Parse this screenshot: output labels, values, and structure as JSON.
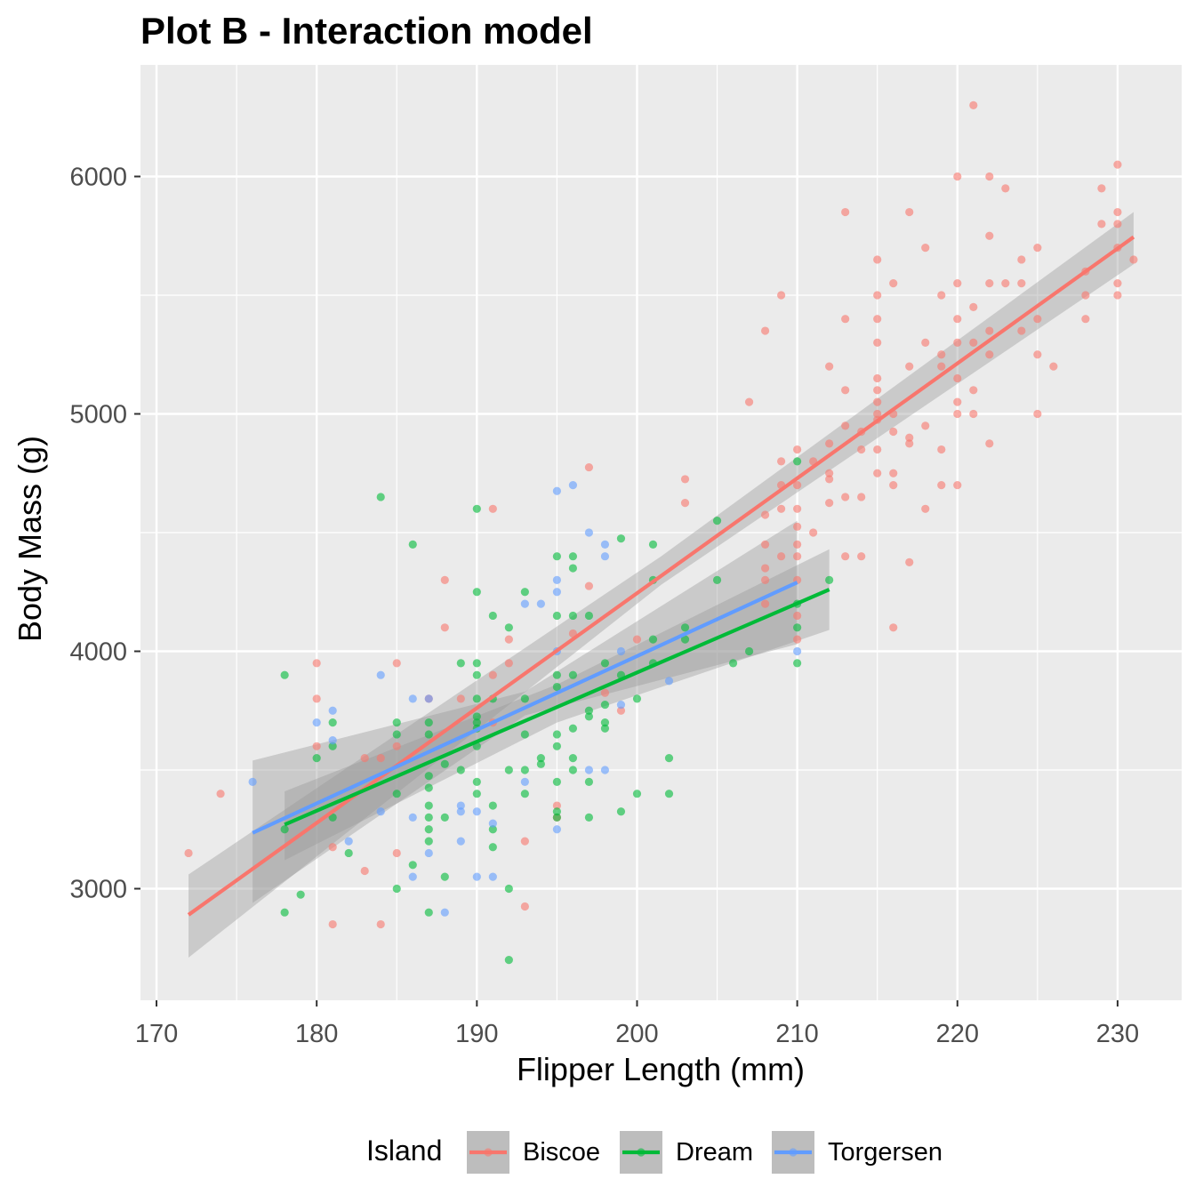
{
  "chart_data": {
    "type": "scatter",
    "title": "Plot B - Interaction model",
    "xlabel": "Flipper Length (mm)",
    "ylabel": "Body Mass (g)",
    "xlim": [
      169,
      234
    ],
    "ylim": [
      2530,
      6470
    ],
    "x_ticks": [
      170,
      180,
      190,
      200,
      210,
      220,
      230
    ],
    "y_ticks": [
      3000,
      4000,
      5000,
      6000
    ],
    "grid": true,
    "legend": {
      "title": "Island",
      "position": "bottom"
    },
    "series": [
      {
        "name": "Biscoe",
        "color": "#F8766D",
        "fit": {
          "x": [
            172,
            231
          ],
          "y": [
            2890,
            5745
          ]
        },
        "band": {
          "x": [
            172,
            201.5,
            231
          ],
          "lower": [
            2710,
            4280,
            5630
          ],
          "upper": [
            3060,
            4400,
            5850
          ]
        },
        "points": [
          [
            172,
            3150
          ],
          [
            174,
            3400
          ],
          [
            180,
            3950
          ],
          [
            180,
            3800
          ],
          [
            180,
            3600
          ],
          [
            181,
            3175
          ],
          [
            181,
            2850
          ],
          [
            183,
            3550
          ],
          [
            183,
            3075
          ],
          [
            184,
            3550
          ],
          [
            184,
            2850
          ],
          [
            185,
            3950
          ],
          [
            185,
            3600
          ],
          [
            185,
            3150
          ],
          [
            187,
            3800
          ],
          [
            188,
            4300
          ],
          [
            188,
            4100
          ],
          [
            189,
            3800
          ],
          [
            191,
            4600
          ],
          [
            191,
            3900
          ],
          [
            191,
            3700
          ],
          [
            192,
            4050
          ],
          [
            192,
            3950
          ],
          [
            193,
            3200
          ],
          [
            193,
            2925
          ],
          [
            195,
            3350
          ],
          [
            195,
            3300
          ],
          [
            196,
            4075
          ],
          [
            197,
            4775
          ],
          [
            197,
            4275
          ],
          [
            198,
            3825
          ],
          [
            199,
            3750
          ],
          [
            200,
            4050
          ],
          [
            203,
            4725
          ],
          [
            203,
            4625
          ],
          [
            207,
            5050
          ],
          [
            208,
            5350
          ],
          [
            208,
            4575
          ],
          [
            208,
            4450
          ],
          [
            208,
            4350
          ],
          [
            208,
            4300
          ],
          [
            208,
            4200
          ],
          [
            209,
            5500
          ],
          [
            209,
            4800
          ],
          [
            209,
            4700
          ],
          [
            209,
            4600
          ],
          [
            209,
            4400
          ],
          [
            210,
            4850
          ],
          [
            210,
            4700
          ],
          [
            210,
            4600
          ],
          [
            210,
            4525
          ],
          [
            210,
            4450
          ],
          [
            210,
            4400
          ],
          [
            210,
            4300
          ],
          [
            210,
            4150
          ],
          [
            210,
            4050
          ],
          [
            211,
            4800
          ],
          [
            211,
            4500
          ],
          [
            212,
            5200
          ],
          [
            212,
            4875
          ],
          [
            212,
            4750
          ],
          [
            212,
            4725
          ],
          [
            212,
            4625
          ],
          [
            213,
            5850
          ],
          [
            213,
            5400
          ],
          [
            213,
            5100
          ],
          [
            213,
            4950
          ],
          [
            213,
            4650
          ],
          [
            213,
            4400
          ],
          [
            214,
            4925
          ],
          [
            214,
            4850
          ],
          [
            214,
            4650
          ],
          [
            214,
            4400
          ],
          [
            215,
            5650
          ],
          [
            215,
            5500
          ],
          [
            215,
            5400
          ],
          [
            215,
            5300
          ],
          [
            215,
            5150
          ],
          [
            215,
            5100
          ],
          [
            215,
            5050
          ],
          [
            215,
            5000
          ],
          [
            215,
            4975
          ],
          [
            215,
            4850
          ],
          [
            215,
            4750
          ],
          [
            216,
            5550
          ],
          [
            216,
            5000
          ],
          [
            216,
            4925
          ],
          [
            216,
            4750
          ],
          [
            216,
            4700
          ],
          [
            216,
            4100
          ],
          [
            217,
            5850
          ],
          [
            217,
            5200
          ],
          [
            217,
            4900
          ],
          [
            217,
            4875
          ],
          [
            217,
            4375
          ],
          [
            218,
            5700
          ],
          [
            218,
            5300
          ],
          [
            218,
            4950
          ],
          [
            218,
            4600
          ],
          [
            219,
            5500
          ],
          [
            219,
            5250
          ],
          [
            219,
            5200
          ],
          [
            219,
            4850
          ],
          [
            219,
            4700
          ],
          [
            220,
            6000
          ],
          [
            220,
            5550
          ],
          [
            220,
            5400
          ],
          [
            220,
            5300
          ],
          [
            220,
            5150
          ],
          [
            220,
            5050
          ],
          [
            220,
            5000
          ],
          [
            220,
            4700
          ],
          [
            221,
            6300
          ],
          [
            221,
            5450
          ],
          [
            221,
            5300
          ],
          [
            221,
            5100
          ],
          [
            221,
            5000
          ],
          [
            222,
            6000
          ],
          [
            222,
            5750
          ],
          [
            222,
            5550
          ],
          [
            222,
            5350
          ],
          [
            222,
            5250
          ],
          [
            222,
            4875
          ],
          [
            223,
            5950
          ],
          [
            223,
            5550
          ],
          [
            224,
            5650
          ],
          [
            224,
            5550
          ],
          [
            224,
            5350
          ],
          [
            225,
            5700
          ],
          [
            225,
            5400
          ],
          [
            225,
            5250
          ],
          [
            225,
            5000
          ],
          [
            226,
            5200
          ],
          [
            228,
            5600
          ],
          [
            228,
            5500
          ],
          [
            228,
            5400
          ],
          [
            229,
            5950
          ],
          [
            229,
            5800
          ],
          [
            230,
            6050
          ],
          [
            230,
            5850
          ],
          [
            230,
            5800
          ],
          [
            230,
            5700
          ],
          [
            230,
            5550
          ],
          [
            230,
            5500
          ],
          [
            231,
            5650
          ]
        ]
      },
      {
        "name": "Dream",
        "color": "#00BA38",
        "fit": {
          "x": [
            178,
            212
          ],
          "y": [
            3270,
            4260
          ]
        },
        "band": {
          "x": [
            178,
            195,
            212
          ],
          "lower": [
            3120,
            3700,
            4090
          ],
          "upper": [
            3410,
            3860,
            4430
          ]
        },
        "points": [
          [
            178,
            3900
          ],
          [
            178,
            3250
          ],
          [
            178,
            2900
          ],
          [
            179,
            2975
          ],
          [
            180,
            3550
          ],
          [
            181,
            3700
          ],
          [
            181,
            3600
          ],
          [
            181,
            3300
          ],
          [
            182,
            3150
          ],
          [
            184,
            4650
          ],
          [
            185,
            3700
          ],
          [
            185,
            3650
          ],
          [
            185,
            3400
          ],
          [
            185,
            3000
          ],
          [
            186,
            4450
          ],
          [
            186,
            3100
          ],
          [
            187,
            3700
          ],
          [
            187,
            3650
          ],
          [
            187,
            3475
          ],
          [
            187,
            3425
          ],
          [
            187,
            3350
          ],
          [
            187,
            3300
          ],
          [
            187,
            3250
          ],
          [
            187,
            3200
          ],
          [
            187,
            2900
          ],
          [
            188,
            3525
          ],
          [
            188,
            3300
          ],
          [
            188,
            3050
          ],
          [
            189,
            3950
          ],
          [
            189,
            3500
          ],
          [
            190,
            4600
          ],
          [
            190,
            4250
          ],
          [
            190,
            3950
          ],
          [
            190,
            3900
          ],
          [
            190,
            3800
          ],
          [
            190,
            3725
          ],
          [
            190,
            3700
          ],
          [
            190,
            3675
          ],
          [
            190,
            3600
          ],
          [
            190,
            3450
          ],
          [
            190,
            3400
          ],
          [
            191,
            4150
          ],
          [
            191,
            3800
          ],
          [
            191,
            3350
          ],
          [
            191,
            3250
          ],
          [
            191,
            3175
          ],
          [
            192,
            4100
          ],
          [
            192,
            3500
          ],
          [
            192,
            3000
          ],
          [
            192,
            2700
          ],
          [
            193,
            4250
          ],
          [
            193,
            3800
          ],
          [
            193,
            3650
          ],
          [
            193,
            3500
          ],
          [
            193,
            3400
          ],
          [
            194,
            3550
          ],
          [
            194,
            3525
          ],
          [
            195,
            4400
          ],
          [
            195,
            4150
          ],
          [
            195,
            3900
          ],
          [
            195,
            3850
          ],
          [
            195,
            3650
          ],
          [
            195,
            3600
          ],
          [
            195,
            3450
          ],
          [
            195,
            3325
          ],
          [
            195,
            3300
          ],
          [
            196,
            4400
          ],
          [
            196,
            4350
          ],
          [
            196,
            4150
          ],
          [
            196,
            3900
          ],
          [
            196,
            3675
          ],
          [
            196,
            3550
          ],
          [
            196,
            3500
          ],
          [
            197,
            4150
          ],
          [
            197,
            3750
          ],
          [
            197,
            3725
          ],
          [
            197,
            3450
          ],
          [
            197,
            3300
          ],
          [
            198,
            3950
          ],
          [
            198,
            3775
          ],
          [
            198,
            3700
          ],
          [
            198,
            3675
          ],
          [
            199,
            4475
          ],
          [
            199,
            3900
          ],
          [
            199,
            3325
          ],
          [
            200,
            3800
          ],
          [
            200,
            3400
          ],
          [
            201,
            4450
          ],
          [
            201,
            4300
          ],
          [
            201,
            4050
          ],
          [
            201,
            3950
          ],
          [
            202,
            3550
          ],
          [
            202,
            3400
          ],
          [
            203,
            4100
          ],
          [
            203,
            4050
          ],
          [
            205,
            4550
          ],
          [
            205,
            4300
          ],
          [
            206,
            3950
          ],
          [
            207,
            4000
          ],
          [
            210,
            4800
          ],
          [
            210,
            4200
          ],
          [
            210,
            4100
          ],
          [
            210,
            3950
          ],
          [
            212,
            4300
          ]
        ]
      },
      {
        "name": "Torgersen",
        "color": "#619CFF",
        "fit": {
          "x": [
            176,
            210
          ],
          "y": [
            3235,
            4290
          ]
        },
        "band": {
          "x": [
            176,
            193,
            210
          ],
          "lower": [
            2940,
            3730,
            4030
          ],
          "upper": [
            3540,
            3830,
            4550
          ]
        },
        "points": [
          [
            176,
            3450
          ],
          [
            180,
            3700
          ],
          [
            181,
            3750
          ],
          [
            181,
            3625
          ],
          [
            182,
            3200
          ],
          [
            184,
            3900
          ],
          [
            184,
            3325
          ],
          [
            186,
            3800
          ],
          [
            186,
            3300
          ],
          [
            186,
            3050
          ],
          [
            187,
            3800
          ],
          [
            187,
            3150
          ],
          [
            188,
            2900
          ],
          [
            189,
            3350
          ],
          [
            189,
            3325
          ],
          [
            189,
            3200
          ],
          [
            190,
            3325
          ],
          [
            190,
            3050
          ],
          [
            191,
            3275
          ],
          [
            191,
            3050
          ],
          [
            193,
            4200
          ],
          [
            193,
            3450
          ],
          [
            194,
            4200
          ],
          [
            195,
            4675
          ],
          [
            195,
            4300
          ],
          [
            195,
            4250
          ],
          [
            195,
            4000
          ],
          [
            195,
            3250
          ],
          [
            196,
            4700
          ],
          [
            197,
            4500
          ],
          [
            197,
            3500
          ],
          [
            198,
            4450
          ],
          [
            198,
            4400
          ],
          [
            198,
            3500
          ],
          [
            199,
            4000
          ],
          [
            199,
            3775
          ],
          [
            202,
            3875
          ],
          [
            210,
            4000
          ]
        ]
      }
    ]
  }
}
